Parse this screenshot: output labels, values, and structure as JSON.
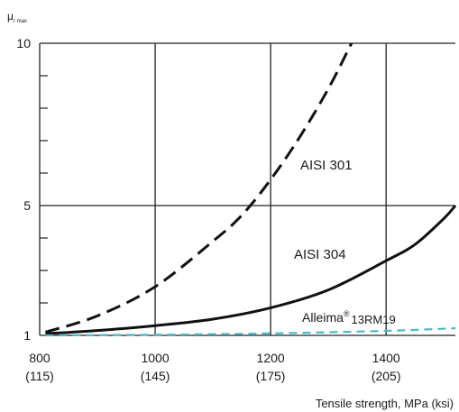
{
  "chart_data": {
    "type": "line",
    "title": "",
    "ylabel": {
      "main": "μ",
      "sub": "r max"
    },
    "xlabel": "Tensile strength, MPa (ksi)",
    "xlim": [
      800,
      1520
    ],
    "ylim": [
      1,
      10
    ],
    "grid": true,
    "x_ticks": [
      {
        "value": 800,
        "label": "800",
        "sublabel": "(115)"
      },
      {
        "value": 1000,
        "label": "1000",
        "sublabel": "(145)"
      },
      {
        "value": 1200,
        "label": "1200",
        "sublabel": "(175)"
      },
      {
        "value": 1400,
        "label": "1400",
        "sublabel": "(205)"
      }
    ],
    "y_ticks": [
      {
        "value": 1,
        "label": "1"
      },
      {
        "value": 5,
        "label": "5"
      },
      {
        "value": 10,
        "label": "10"
      }
    ],
    "y_minor_ticks": [
      2,
      3,
      4,
      6,
      7,
      8,
      9
    ],
    "series": [
      {
        "name": "AISI 301",
        "style": "dashed",
        "color": "#111111",
        "x": [
          810,
          900,
          1000,
          1100,
          1150,
          1200,
          1250,
          1300,
          1340
        ],
        "y": [
          1.1,
          1.6,
          2.5,
          3.9,
          4.7,
          5.8,
          7.1,
          8.6,
          10.0
        ]
      },
      {
        "name": "AISI 304",
        "style": "solid",
        "color": "#111111",
        "x": [
          810,
          900,
          1000,
          1100,
          1200,
          1300,
          1400,
          1450,
          1500,
          1520
        ],
        "y": [
          1.05,
          1.15,
          1.3,
          1.5,
          1.85,
          2.4,
          3.3,
          3.8,
          4.6,
          5.0
        ]
      },
      {
        "name": "Alleima® 13RM19",
        "style": "dashed",
        "color": "#4db8c8",
        "x": [
          810,
          1000,
          1200,
          1400,
          1520
        ],
        "y": [
          1.0,
          1.02,
          1.06,
          1.14,
          1.22
        ]
      }
    ],
    "labels": {
      "aisi301": "AISI 301",
      "aisi304": "AISI 304",
      "alleima_name": "Alleima",
      "alleima_reg": "®",
      "alleima_grade": "13RM19"
    }
  }
}
